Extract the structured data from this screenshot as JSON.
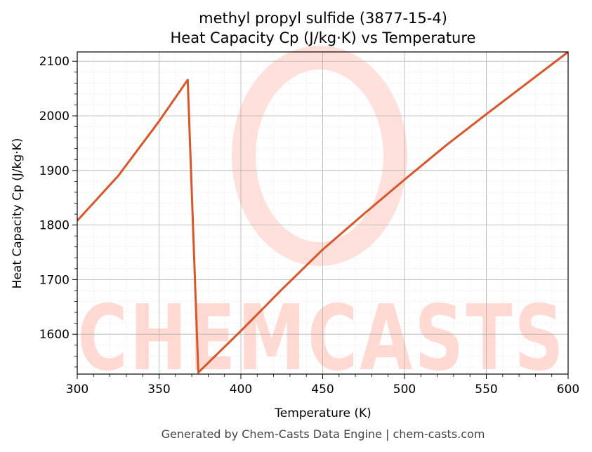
{
  "chart_data": {
    "type": "line",
    "title": "methyl propyl sulfide (3877-15-4)",
    "subtitle": "Heat Capacity Cp (J/kg·K) vs Temperature",
    "xlabel": "Temperature (K)",
    "ylabel": "Heat Capacity Cp (J/kg·K)",
    "xlim": [
      300,
      600
    ],
    "ylim": [
      1527,
      2117
    ],
    "x_ticks": [
      300,
      350,
      400,
      450,
      500,
      550,
      600
    ],
    "y_ticks": [
      1600,
      1700,
      1800,
      1900,
      2000,
      2100
    ],
    "grid": true,
    "legend": "none",
    "series": [
      {
        "color": "#d9552a",
        "points": [
          [
            300,
            1808
          ],
          [
            325,
            1890
          ],
          [
            350,
            1990
          ],
          [
            367.5,
            2066
          ],
          [
            374,
            1530
          ],
          [
            400,
            1606
          ],
          [
            425,
            1682
          ],
          [
            450,
            1755
          ],
          [
            475,
            1820
          ],
          [
            500,
            1883
          ],
          [
            525,
            1945
          ],
          [
            550,
            2003
          ],
          [
            600,
            2117
          ]
        ]
      }
    ]
  },
  "watermark": {
    "text": "CHEMCASTS",
    "color": "#ffd9d2"
  },
  "footer": "Generated by Chem-Casts Data Engine | chem-casts.com"
}
